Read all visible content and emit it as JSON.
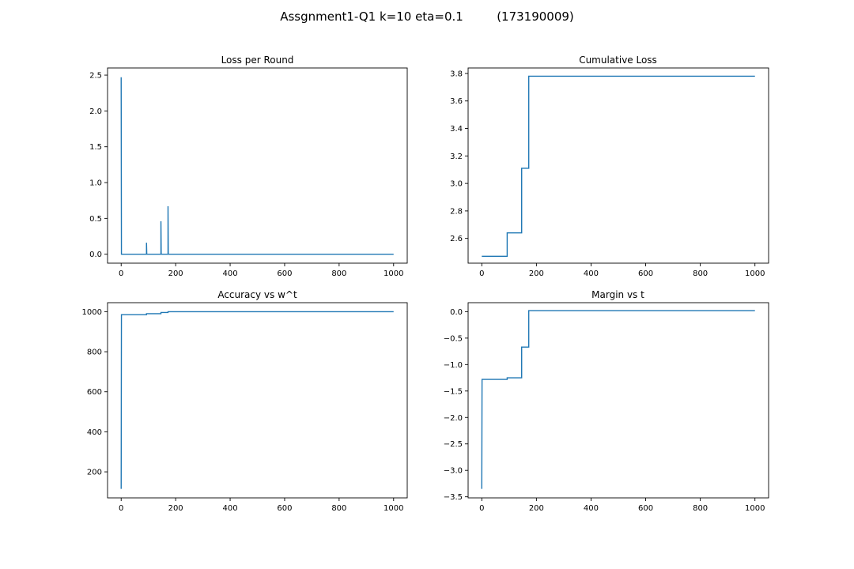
{
  "figure": {
    "title_left": "Assgnment1-Q1 k=10 eta=0.1",
    "title_right": "(173190009)"
  },
  "colors": {
    "series": "#1f77b4",
    "axes": "#000000",
    "background": "#ffffff"
  },
  "chart_data": [
    {
      "type": "line",
      "title": "Loss per Round",
      "xlabel": "",
      "ylabel": "",
      "xlim": [
        -50,
        1050
      ],
      "ylim": [
        -0.125,
        2.6
      ],
      "xticks": [
        0,
        200,
        400,
        600,
        800,
        1000
      ],
      "xtick_labels": [
        "0",
        "200",
        "400",
        "600",
        "800",
        "1000"
      ],
      "yticks": [
        0.0,
        0.5,
        1.0,
        1.5,
        2.0,
        2.5
      ],
      "ytick_labels": [
        "0.0",
        "0.5",
        "1.0",
        "1.5",
        "2.0",
        "2.5"
      ],
      "grid": false,
      "series": [
        {
          "x": [
            0,
            1,
            93,
            93,
            94,
            146,
            146,
            147,
            172,
            172,
            173,
            1000
          ],
          "y": [
            2.47,
            0,
            0,
            0.16,
            0,
            0,
            0.46,
            0,
            0,
            0.67,
            0,
            0
          ]
        }
      ]
    },
    {
      "type": "line",
      "title": "Cumulative Loss",
      "xlabel": "",
      "ylabel": "",
      "xlim": [
        -50,
        1050
      ],
      "ylim": [
        2.42,
        3.84
      ],
      "xticks": [
        0,
        200,
        400,
        600,
        800,
        1000
      ],
      "xtick_labels": [
        "0",
        "200",
        "400",
        "600",
        "800",
        "1000"
      ],
      "yticks": [
        2.6,
        2.8,
        3.0,
        3.2,
        3.4,
        3.6,
        3.8
      ],
      "ytick_labels": [
        "2.6",
        "2.8",
        "3.0",
        "3.2",
        "3.4",
        "3.6",
        "3.8"
      ],
      "grid": false,
      "series": [
        {
          "x": [
            0,
            93,
            93,
            146,
            146,
            172,
            172,
            1000
          ],
          "y": [
            2.47,
            2.47,
            2.64,
            2.64,
            3.11,
            3.11,
            3.78,
            3.78
          ]
        }
      ]
    },
    {
      "type": "line",
      "title": "Accuracy vs w^t",
      "xlabel": "",
      "ylabel": "",
      "xlim": [
        -50,
        1050
      ],
      "ylim": [
        70,
        1045
      ],
      "xticks": [
        0,
        200,
        400,
        600,
        800,
        1000
      ],
      "xtick_labels": [
        "0",
        "200",
        "400",
        "600",
        "800",
        "1000"
      ],
      "yticks": [
        200,
        400,
        600,
        800,
        1000
      ],
      "ytick_labels": [
        "200",
        "400",
        "600",
        "800",
        "1000"
      ],
      "grid": false,
      "series": [
        {
          "x": [
            0,
            1,
            93,
            93,
            146,
            146,
            172,
            172,
            1000
          ],
          "y": [
            115,
            985,
            985,
            990,
            990,
            996,
            996,
            1000,
            1000
          ]
        }
      ]
    },
    {
      "type": "line",
      "title": "Margin vs t",
      "xlabel": "",
      "ylabel": "",
      "xlim": [
        -50,
        1050
      ],
      "ylim": [
        -3.52,
        0.17
      ],
      "xticks": [
        0,
        200,
        400,
        600,
        800,
        1000
      ],
      "xtick_labels": [
        "0",
        "200",
        "400",
        "600",
        "800",
        "1000"
      ],
      "yticks": [
        0.0,
        -0.5,
        -1.0,
        -1.5,
        -2.0,
        -2.5,
        -3.0,
        -3.5
      ],
      "ytick_labels": [
        "0.0",
        "−0.5",
        "−1.0",
        "−1.5",
        "−2.0",
        "−2.5",
        "−3.0",
        "−3.5"
      ],
      "grid": false,
      "series": [
        {
          "x": [
            0,
            1,
            93,
            93,
            146,
            146,
            172,
            172,
            1000
          ],
          "y": [
            -3.35,
            -1.28,
            -1.28,
            -1.25,
            -1.25,
            -0.67,
            -0.67,
            0.02,
            0.02
          ]
        }
      ]
    }
  ]
}
